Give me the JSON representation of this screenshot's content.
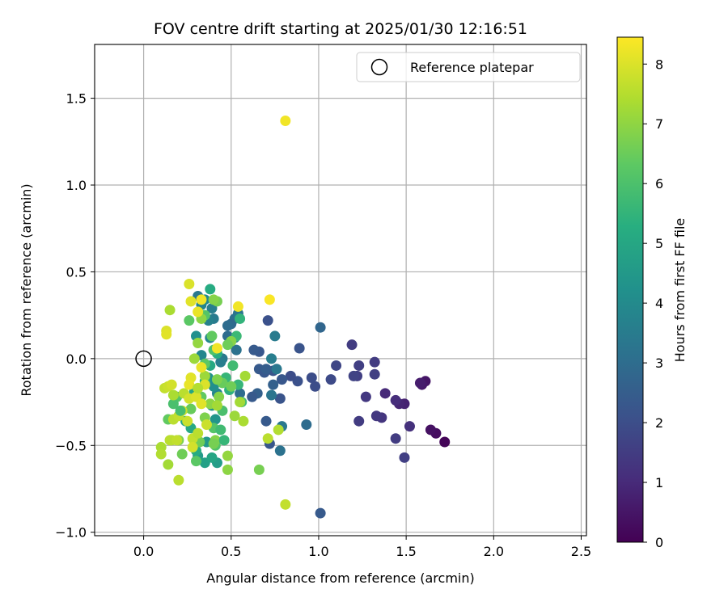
{
  "chart_data": {
    "type": "scatter",
    "title": "FOV centre drift starting at 2025/01/30 12:16:51",
    "xlabel": "Angular distance from reference (arcmin)",
    "ylabel": "Rotation from reference (arcmin)",
    "xlim": [
      -0.28,
      2.53
    ],
    "ylim": [
      -1.02,
      1.81
    ],
    "xticks": [
      0.0,
      0.5,
      1.0,
      1.5,
      2.0,
      2.5
    ],
    "xtick_labels": [
      "0.0",
      "0.5",
      "1.0",
      "1.5",
      "2.0",
      "2.5"
    ],
    "yticks": [
      -1.0,
      -0.5,
      0.0,
      0.5,
      1.0,
      1.5
    ],
    "ytick_labels": [
      "−1.0",
      "−0.5",
      "0.0",
      "0.5",
      "1.0",
      "1.5"
    ],
    "grid": true,
    "legend": {
      "placement": "top-right",
      "entries": [
        "Reference platepar"
      ]
    },
    "reference_point": {
      "x": 0.0,
      "y": 0.0,
      "label": "Reference platepar"
    },
    "colorbar": {
      "label": "Hours from first FF file",
      "colormap": "viridis",
      "range": [
        0,
        8.45
      ],
      "ticks": [
        0,
        1,
        2,
        3,
        4,
        5,
        6,
        7,
        8
      ],
      "tick_labels": [
        "0",
        "1",
        "2",
        "3",
        "4",
        "5",
        "6",
        "7",
        "8"
      ]
    },
    "points": [
      {
        "x": 1.72,
        "y": -0.48,
        "t": 0.1
      },
      {
        "x": 1.67,
        "y": -0.43,
        "t": 0.3
      },
      {
        "x": 1.64,
        "y": -0.41,
        "t": 0.4
      },
      {
        "x": 1.61,
        "y": -0.13,
        "t": 0.5
      },
      {
        "x": 1.59,
        "y": -0.15,
        "t": 0.6
      },
      {
        "x": 1.58,
        "y": -0.14,
        "t": 0.7
      },
      {
        "x": 1.49,
        "y": -0.26,
        "t": 0.8
      },
      {
        "x": 1.46,
        "y": -0.26,
        "t": 0.9
      },
      {
        "x": 1.38,
        "y": -0.2,
        "t": 1.0
      },
      {
        "x": 1.44,
        "y": -0.24,
        "t": 1.1
      },
      {
        "x": 1.52,
        "y": -0.39,
        "t": 1.2
      },
      {
        "x": 1.36,
        "y": -0.34,
        "t": 1.3
      },
      {
        "x": 1.33,
        "y": -0.33,
        "t": 1.4
      },
      {
        "x": 1.44,
        "y": -0.46,
        "t": 1.5
      },
      {
        "x": 1.49,
        "y": -0.57,
        "t": 1.6
      },
      {
        "x": 1.27,
        "y": -0.22,
        "t": 1.4
      },
      {
        "x": 1.23,
        "y": -0.36,
        "t": 1.5
      },
      {
        "x": 1.22,
        "y": -0.1,
        "t": 1.6
      },
      {
        "x": 1.2,
        "y": -0.1,
        "t": 1.7
      },
      {
        "x": 1.23,
        "y": -0.04,
        "t": 1.6
      },
      {
        "x": 1.19,
        "y": 0.08,
        "t": 1.5
      },
      {
        "x": 1.32,
        "y": -0.02,
        "t": 1.5
      },
      {
        "x": 1.32,
        "y": -0.09,
        "t": 1.6
      },
      {
        "x": 1.1,
        "y": -0.04,
        "t": 1.8
      },
      {
        "x": 1.07,
        "y": -0.12,
        "t": 1.9
      },
      {
        "x": 0.98,
        "y": -0.16,
        "t": 2.0
      },
      {
        "x": 0.96,
        "y": -0.11,
        "t": 2.0
      },
      {
        "x": 0.89,
        "y": 0.06,
        "t": 2.2
      },
      {
        "x": 0.88,
        "y": -0.13,
        "t": 2.1
      },
      {
        "x": 0.84,
        "y": -0.1,
        "t": 2.0
      },
      {
        "x": 0.79,
        "y": -0.12,
        "t": 2.3
      },
      {
        "x": 0.78,
        "y": -0.23,
        "t": 2.2
      },
      {
        "x": 0.74,
        "y": -0.07,
        "t": 2.2
      },
      {
        "x": 0.71,
        "y": 0.22,
        "t": 2.1
      },
      {
        "x": 0.66,
        "y": 0.04,
        "t": 2.3
      },
      {
        "x": 0.63,
        "y": 0.05,
        "t": 2.4
      },
      {
        "x": 0.66,
        "y": -0.06,
        "t": 2.4
      },
      {
        "x": 0.69,
        "y": -0.08,
        "t": 2.3
      },
      {
        "x": 0.7,
        "y": -0.06,
        "t": 2.5
      },
      {
        "x": 0.74,
        "y": -0.15,
        "t": 2.6
      },
      {
        "x": 0.65,
        "y": -0.2,
        "t": 2.6
      },
      {
        "x": 0.62,
        "y": -0.22,
        "t": 2.4
      },
      {
        "x": 0.72,
        "y": -0.49,
        "t": 2.3
      },
      {
        "x": 0.7,
        "y": -0.36,
        "t": 2.4
      },
      {
        "x": 1.01,
        "y": -0.89,
        "t": 2.4
      },
      {
        "x": 1.01,
        "y": 0.18,
        "t": 2.8
      },
      {
        "x": 0.93,
        "y": -0.38,
        "t": 3.0
      },
      {
        "x": 0.78,
        "y": -0.53,
        "t": 3.2
      },
      {
        "x": 0.79,
        "y": -0.39,
        "t": 3.4
      },
      {
        "x": 0.75,
        "y": 0.13,
        "t": 3.5
      },
      {
        "x": 0.73,
        "y": -0.21,
        "t": 3.3
      },
      {
        "x": 0.73,
        "y": 0.0,
        "t": 3.6
      },
      {
        "x": 0.76,
        "y": -0.06,
        "t": 3.4
      },
      {
        "x": 0.55,
        "y": -0.2,
        "t": 3.0
      },
      {
        "x": 0.52,
        "y": 0.23,
        "t": 3.1
      },
      {
        "x": 0.5,
        "y": 0.2,
        "t": 2.9
      },
      {
        "x": 0.48,
        "y": 0.19,
        "t": 3.0
      },
      {
        "x": 0.54,
        "y": 0.26,
        "t": 3.3
      },
      {
        "x": 0.53,
        "y": 0.05,
        "t": 3.2
      },
      {
        "x": 0.52,
        "y": 0.12,
        "t": 3.5
      },
      {
        "x": 0.48,
        "y": 0.13,
        "t": 3.0
      },
      {
        "x": 0.45,
        "y": 0.0,
        "t": 3.4
      },
      {
        "x": 0.44,
        "y": -0.02,
        "t": 3.6
      },
      {
        "x": 0.42,
        "y": -0.2,
        "t": 3.8
      },
      {
        "x": 0.39,
        "y": 0.29,
        "t": 3.6
      },
      {
        "x": 0.4,
        "y": 0.23,
        "t": 3.5
      },
      {
        "x": 0.37,
        "y": 0.22,
        "t": 3.7
      },
      {
        "x": 0.33,
        "y": 0.31,
        "t": 3.8
      },
      {
        "x": 0.31,
        "y": 0.36,
        "t": 3.4
      },
      {
        "x": 0.35,
        "y": 0.34,
        "t": 4.0
      },
      {
        "x": 0.38,
        "y": 0.12,
        "t": 3.9
      },
      {
        "x": 0.33,
        "y": 0.02,
        "t": 3.9
      },
      {
        "x": 0.3,
        "y": 0.13,
        "t": 4.2
      },
      {
        "x": 0.37,
        "y": -0.11,
        "t": 4.3
      },
      {
        "x": 0.4,
        "y": -0.16,
        "t": 4.2
      },
      {
        "x": 0.41,
        "y": -0.35,
        "t": 4.4
      },
      {
        "x": 0.39,
        "y": -0.27,
        "t": 4.4
      },
      {
        "x": 0.36,
        "y": -0.48,
        "t": 4.5
      },
      {
        "x": 0.35,
        "y": -0.6,
        "t": 4.8
      },
      {
        "x": 0.42,
        "y": -0.6,
        "t": 4.7
      },
      {
        "x": 0.39,
        "y": -0.57,
        "t": 5.0
      },
      {
        "x": 0.31,
        "y": -0.56,
        "t": 4.6
      },
      {
        "x": 0.3,
        "y": -0.53,
        "t": 5.2
      },
      {
        "x": 0.27,
        "y": -0.4,
        "t": 5.1
      },
      {
        "x": 0.24,
        "y": -0.36,
        "t": 5.0
      },
      {
        "x": 0.29,
        "y": -0.19,
        "t": 5.0
      },
      {
        "x": 0.35,
        "y": -0.13,
        "t": 5.3
      },
      {
        "x": 0.38,
        "y": -0.04,
        "t": 5.1
      },
      {
        "x": 0.42,
        "y": 0.03,
        "t": 5.3
      },
      {
        "x": 0.49,
        "y": -0.18,
        "t": 5.4
      },
      {
        "x": 0.54,
        "y": -0.15,
        "t": 5.6
      },
      {
        "x": 0.55,
        "y": 0.23,
        "t": 5.5
      },
      {
        "x": 0.53,
        "y": 0.13,
        "t": 5.7
      },
      {
        "x": 0.47,
        "y": -0.11,
        "t": 5.6
      },
      {
        "x": 0.51,
        "y": -0.04,
        "t": 5.8
      },
      {
        "x": 0.56,
        "y": -0.25,
        "t": 5.9
      },
      {
        "x": 0.45,
        "y": -0.3,
        "t": 6.0
      },
      {
        "x": 0.41,
        "y": -0.5,
        "t": 6.1
      },
      {
        "x": 0.4,
        "y": -0.4,
        "t": 6.2
      },
      {
        "x": 0.38,
        "y": 0.4,
        "t": 5.2
      },
      {
        "x": 0.35,
        "y": 0.25,
        "t": 6.2
      },
      {
        "x": 0.26,
        "y": 0.22,
        "t": 6.3
      },
      {
        "x": 0.39,
        "y": 0.13,
        "t": 6.4
      },
      {
        "x": 0.4,
        "y": 0.05,
        "t": 6.1
      },
      {
        "x": 0.35,
        "y": -0.03,
        "t": 6.3
      },
      {
        "x": 0.33,
        "y": -0.22,
        "t": 6.4
      },
      {
        "x": 0.27,
        "y": -0.29,
        "t": 6.5
      },
      {
        "x": 0.19,
        "y": -0.22,
        "t": 6.2
      },
      {
        "x": 0.17,
        "y": -0.26,
        "t": 6.0
      },
      {
        "x": 0.14,
        "y": -0.35,
        "t": 6.4
      },
      {
        "x": 0.22,
        "y": -0.55,
        "t": 6.6
      },
      {
        "x": 0.2,
        "y": -0.47,
        "t": 6.8
      },
      {
        "x": 0.32,
        "y": -0.48,
        "t": 6.6
      },
      {
        "x": 0.3,
        "y": -0.59,
        "t": 6.3
      },
      {
        "x": 0.66,
        "y": -0.64,
        "t": 6.7
      },
      {
        "x": 0.48,
        "y": -0.64,
        "t": 7.0
      },
      {
        "x": 0.48,
        "y": -0.56,
        "t": 7.1
      },
      {
        "x": 0.41,
        "y": -0.47,
        "t": 6.9
      },
      {
        "x": 0.4,
        "y": -0.49,
        "t": 6.7
      },
      {
        "x": 0.35,
        "y": -0.34,
        "t": 6.8
      },
      {
        "x": 0.43,
        "y": -0.22,
        "t": 6.9
      },
      {
        "x": 0.45,
        "y": -0.14,
        "t": 6.5
      },
      {
        "x": 0.42,
        "y": -0.12,
        "t": 6.8
      },
      {
        "x": 0.5,
        "y": -0.16,
        "t": 6.6
      },
      {
        "x": 0.5,
        "y": 0.1,
        "t": 6.9
      },
      {
        "x": 0.48,
        "y": 0.08,
        "t": 6.6
      },
      {
        "x": 0.42,
        "y": 0.33,
        "t": 6.7
      },
      {
        "x": 0.4,
        "y": 0.34,
        "t": 6.9
      },
      {
        "x": 0.33,
        "y": 0.23,
        "t": 7.0
      },
      {
        "x": 0.31,
        "y": 0.09,
        "t": 7.1
      },
      {
        "x": 0.29,
        "y": 0.0,
        "t": 7.2
      },
      {
        "x": 0.35,
        "y": -0.1,
        "t": 7.2
      },
      {
        "x": 0.38,
        "y": -0.26,
        "t": 7.0
      },
      {
        "x": 0.42,
        "y": -0.27,
        "t": 7.3
      },
      {
        "x": 0.52,
        "y": -0.33,
        "t": 7.2
      },
      {
        "x": 0.55,
        "y": -0.25,
        "t": 7.3
      },
      {
        "x": 0.57,
        "y": -0.36,
        "t": 7.4
      },
      {
        "x": 0.58,
        "y": -0.1,
        "t": 7.3
      },
      {
        "x": 0.77,
        "y": -0.41,
        "t": 7.5
      },
      {
        "x": 0.71,
        "y": -0.46,
        "t": 7.6
      },
      {
        "x": 0.81,
        "y": -0.84,
        "t": 7.7
      },
      {
        "x": 0.1,
        "y": -0.51,
        "t": 7.4
      },
      {
        "x": 0.1,
        "y": -0.55,
        "t": 7.5
      },
      {
        "x": 0.14,
        "y": -0.61,
        "t": 7.3
      },
      {
        "x": 0.2,
        "y": -0.7,
        "t": 7.6
      },
      {
        "x": 0.16,
        "y": -0.47,
        "t": 7.5
      },
      {
        "x": 0.15,
        "y": -0.47,
        "t": 7.6
      },
      {
        "x": 0.19,
        "y": -0.47,
        "t": 7.7
      },
      {
        "x": 0.17,
        "y": -0.35,
        "t": 7.6
      },
      {
        "x": 0.2,
        "y": -0.33,
        "t": 7.7
      },
      {
        "x": 0.22,
        "y": -0.3,
        "t": 7.8
      },
      {
        "x": 0.12,
        "y": -0.17,
        "t": 7.7
      },
      {
        "x": 0.14,
        "y": -0.16,
        "t": 7.8
      },
      {
        "x": 0.16,
        "y": -0.15,
        "t": 7.9
      },
      {
        "x": 0.17,
        "y": -0.21,
        "t": 7.4
      },
      {
        "x": 0.23,
        "y": -0.2,
        "t": 7.6
      },
      {
        "x": 0.25,
        "y": -0.36,
        "t": 7.8
      },
      {
        "x": 0.28,
        "y": -0.46,
        "t": 7.7
      },
      {
        "x": 0.31,
        "y": -0.43,
        "t": 7.6
      },
      {
        "x": 0.28,
        "y": -0.51,
        "t": 7.9
      },
      {
        "x": 0.26,
        "y": -0.23,
        "t": 7.9
      },
      {
        "x": 0.3,
        "y": -0.22,
        "t": 8.0
      },
      {
        "x": 0.33,
        "y": -0.26,
        "t": 8.1
      },
      {
        "x": 0.35,
        "y": -0.15,
        "t": 8.0
      },
      {
        "x": 0.27,
        "y": -0.11,
        "t": 8.1
      },
      {
        "x": 0.26,
        "y": -0.15,
        "t": 8.2
      },
      {
        "x": 0.33,
        "y": -0.05,
        "t": 8.2
      },
      {
        "x": 0.31,
        "y": -0.17,
        "t": 7.5
      },
      {
        "x": 0.13,
        "y": 0.16,
        "t": 8.0
      },
      {
        "x": 0.13,
        "y": 0.14,
        "t": 8.1
      },
      {
        "x": 0.15,
        "y": 0.28,
        "t": 7.4
      },
      {
        "x": 0.31,
        "y": 0.27,
        "t": 8.2
      },
      {
        "x": 0.27,
        "y": 0.33,
        "t": 8.1
      },
      {
        "x": 0.33,
        "y": 0.34,
        "t": 8.3
      },
      {
        "x": 0.26,
        "y": 0.43,
        "t": 8.0
      },
      {
        "x": 0.42,
        "y": 0.06,
        "t": 8.3
      },
      {
        "x": 0.54,
        "y": 0.3,
        "t": 8.3
      },
      {
        "x": 0.72,
        "y": 0.34,
        "t": 8.4
      },
      {
        "x": 0.81,
        "y": 1.37,
        "t": 8.3
      },
      {
        "x": 0.36,
        "y": -0.38,
        "t": 7.8
      },
      {
        "x": 0.46,
        "y": -0.47,
        "t": 5.6
      },
      {
        "x": 0.44,
        "y": -0.41,
        "t": 5.8
      },
      {
        "x": 0.21,
        "y": -0.3,
        "t": 5.9
      }
    ]
  }
}
